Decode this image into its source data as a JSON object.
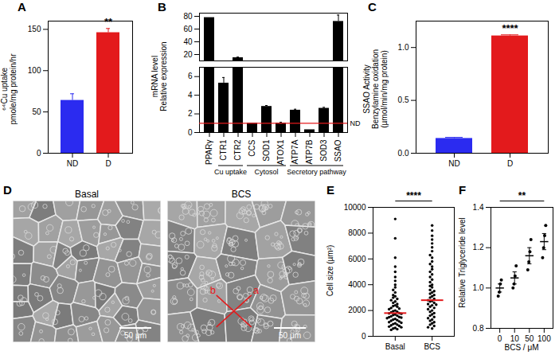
{
  "chart_data": [
    {
      "panel": "A",
      "type": "bar",
      "ylabel": [
        "⁶⁴Cu uptake",
        "pmole/mg protein/hr"
      ],
      "categories": [
        "ND",
        "D"
      ],
      "values": [
        64,
        146
      ],
      "errors": [
        8,
        5
      ],
      "colors": [
        "#2b2bf0",
        "#e31a1c"
      ],
      "ylim": [
        0,
        160
      ],
      "yticks": [
        0,
        50,
        100,
        150
      ],
      "annotations": [
        {
          "category": "D",
          "text": "**"
        }
      ]
    },
    {
      "panel": "B",
      "type": "bar",
      "ylabel": [
        "mRNA level",
        "Relative expression"
      ],
      "categories": [
        "PPARγ",
        "CTR1",
        "CTR2",
        "CCS",
        "SOD1",
        "ATOX1",
        "ATP7A",
        "ATP7B",
        "SOD3",
        "SSAO"
      ],
      "values": [
        78,
        5.3,
        15,
        1.0,
        2.8,
        1.0,
        2.4,
        0.3,
        2.6,
        72
      ],
      "errors": [
        0,
        0.6,
        1,
        0,
        0.1,
        0.1,
        0.1,
        0,
        0.1,
        10
      ],
      "color": "#000000",
      "axis_segments": [
        {
          "ylim": [
            0,
            7
          ],
          "yticks": [
            0,
            2,
            4,
            6
          ]
        },
        {
          "ylim": [
            10,
            85
          ],
          "yticks": [
            20,
            40,
            60,
            80
          ]
        }
      ],
      "reference_line": {
        "value": 1,
        "label": "ND"
      },
      "groups": [
        {
          "label": "Cu uptake",
          "categories": [
            "CTR1",
            "CTR2"
          ]
        },
        {
          "label": "Cytosol",
          "categories": [
            "CCS",
            "SOD1",
            "ATOX1"
          ]
        },
        {
          "label": "Secretory pathway",
          "categories": [
            "ATP7A",
            "ATP7B",
            "SOD3",
            "SSAO"
          ]
        }
      ]
    },
    {
      "panel": "C",
      "type": "bar",
      "ylabel": [
        "SSAO Activity",
        "Benzylamine oxidation",
        "(µmol/min/mg protein)"
      ],
      "categories": [
        "ND",
        "D"
      ],
      "values": [
        0.14,
        1.11
      ],
      "errors": [
        0.01,
        0.01
      ],
      "colors": [
        "#2b2bf0",
        "#e31a1c"
      ],
      "ylim": [
        0,
        1.25
      ],
      "yticks": [
        {
          "value": 0,
          "label": "0.0"
        },
        {
          "value": 0.5,
          "label": "0.5"
        },
        {
          "value": 1,
          "label": "1.0"
        }
      ],
      "annotations": [
        {
          "category": "D",
          "text": "****"
        }
      ]
    },
    {
      "panel": "E",
      "type": "scatter",
      "ylabel": [
        "Cell size (µm²)"
      ],
      "categories": [
        "Basal",
        "BCS"
      ],
      "color": "#000000",
      "values": [
        [
          9100,
          7600,
          6100,
          5400,
          5000,
          4600,
          4300,
          4000,
          3800,
          3600,
          3400,
          3200,
          3100,
          3000,
          2900,
          2800,
          2700,
          2600,
          2500,
          2400,
          2350,
          2300,
          2200,
          2150,
          2100,
          2000,
          1950,
          1900,
          1850,
          1800,
          1780,
          1750,
          1700,
          1650,
          1600,
          1550,
          1500,
          1480,
          1450,
          1400,
          1350,
          1300,
          1250,
          1200,
          1150,
          1100,
          1050,
          1000,
          950,
          900,
          850,
          800,
          750,
          700,
          650,
          600,
          550,
          500
        ],
        [
          8600,
          8200,
          7800,
          7500,
          7200,
          6900,
          6600,
          6300,
          6100,
          5800,
          5600,
          5400,
          5200,
          5000,
          4800,
          4600,
          4400,
          4200,
          4000,
          3900,
          3800,
          3600,
          3500,
          3400,
          3300,
          3200,
          3100,
          3000,
          2900,
          2800,
          2750,
          2700,
          2600,
          2500,
          2450,
          2400,
          2300,
          2200,
          2100,
          2000,
          1900,
          1800,
          1700,
          1600,
          1500,
          1400,
          1300,
          1200,
          1100,
          1000,
          900,
          800,
          700,
          600
        ]
      ],
      "medians": [
        1800,
        2800
      ],
      "ylim": [
        0,
        10000
      ],
      "yticks": [
        0,
        2000,
        4000,
        6000,
        8000,
        10000
      ],
      "annotations": [
        {
          "from": "Basal",
          "to": "BCS",
          "text": "****"
        }
      ]
    },
    {
      "panel": "F",
      "type": "scatter",
      "ylabel": [
        "Relative Triglyceride level"
      ],
      "xlabel": "BCS / μM",
      "categories": [
        0,
        10,
        50,
        100
      ],
      "color": "#000000",
      "points": [
        [
          0.96,
          0.98,
          1.02,
          1.04
        ],
        [
          1.0,
          1.02,
          1.06,
          1.11
        ],
        [
          1.09,
          1.13,
          1.18,
          1.24
        ],
        [
          1.15,
          1.2,
          1.26,
          1.31
        ]
      ],
      "means": [
        1.0,
        1.05,
        1.16,
        1.23
      ],
      "errors": [
        0.02,
        0.03,
        0.04,
        0.04
      ],
      "ylim": [
        0.8,
        1.4
      ],
      "yticks": [
        {
          "value": 0.8,
          "label": "0.8"
        },
        {
          "value": 1,
          "label": "1.0"
        },
        {
          "value": 1.2,
          "label": "1.2"
        },
        {
          "value": 1.4,
          "label": "1.4"
        }
      ],
      "annotations": [
        {
          "from": 0,
          "to": 100,
          "text": "**"
        }
      ]
    }
  ],
  "micrographs": {
    "panel": "D",
    "images": [
      {
        "label": "Basal",
        "scale_bar": "50 μm",
        "marks": []
      },
      {
        "label": "BCS",
        "scale_bar": "50 μm",
        "marks": [
          "b",
          "a"
        ]
      }
    ]
  }
}
